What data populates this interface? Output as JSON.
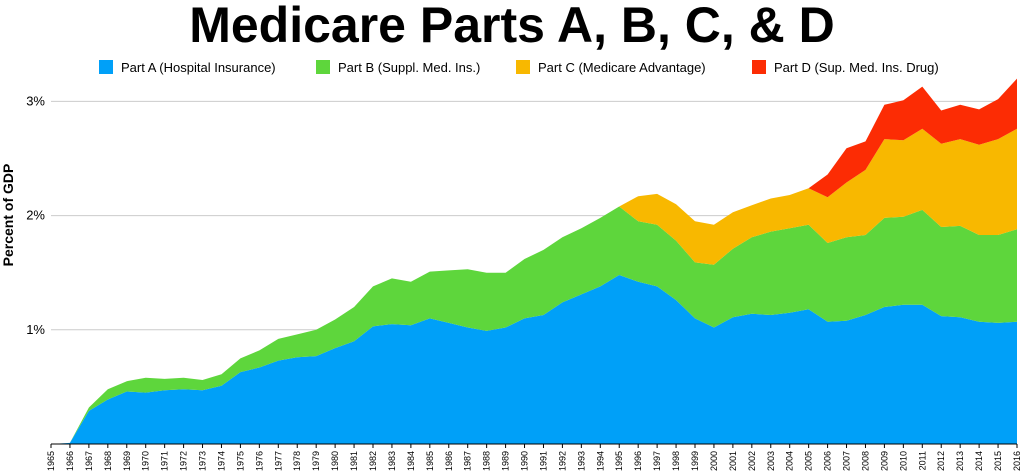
{
  "chart_data": {
    "type": "area",
    "stacked": true,
    "title": "Medicare Parts A, B, C, & D",
    "ylabel": "Percent of GDP",
    "xlabel": "",
    "ylim": [
      0,
      3.2
    ],
    "yticks": [
      1,
      2,
      3
    ],
    "ytick_labels": [
      "1%",
      "2%",
      "3%"
    ],
    "grid": true,
    "legend_position": "top",
    "x": [
      1965,
      1966,
      1967,
      1968,
      1969,
      1970,
      1971,
      1972,
      1973,
      1974,
      1975,
      1976,
      1977,
      1978,
      1979,
      1980,
      1981,
      1982,
      1983,
      1984,
      1985,
      1986,
      1987,
      1988,
      1989,
      1990,
      1991,
      1992,
      1993,
      1994,
      1995,
      1996,
      1997,
      1998,
      1999,
      2000,
      2001,
      2002,
      2003,
      2004,
      2005,
      2006,
      2007,
      2008,
      2009,
      2010,
      2011,
      2012,
      2013,
      2014,
      2015,
      2016
    ],
    "series": [
      {
        "name": "Part A (Hospital Insurance)",
        "color": "#00a0f8",
        "values": [
          0,
          0.01,
          0.29,
          0.39,
          0.46,
          0.45,
          0.47,
          0.48,
          0.47,
          0.51,
          0.63,
          0.67,
          0.73,
          0.76,
          0.77,
          0.84,
          0.9,
          1.03,
          1.05,
          1.04,
          1.1,
          1.06,
          1.02,
          0.99,
          1.02,
          1.1,
          1.13,
          1.24,
          1.31,
          1.38,
          1.48,
          1.42,
          1.38,
          1.26,
          1.1,
          1.02,
          1.11,
          1.14,
          1.13,
          1.15,
          1.18,
          1.07,
          1.08,
          1.13,
          1.2,
          1.22,
          1.22,
          1.12,
          1.11,
          1.07,
          1.06,
          1.07
        ]
      },
      {
        "name": "Part B (Suppl. Med. Ins.)",
        "color": "#5ed63c",
        "values": [
          0,
          0,
          0.03,
          0.09,
          0.09,
          0.13,
          0.1,
          0.1,
          0.09,
          0.1,
          0.12,
          0.15,
          0.19,
          0.2,
          0.23,
          0.25,
          0.3,
          0.35,
          0.4,
          0.38,
          0.41,
          0.46,
          0.51,
          0.51,
          0.48,
          0.52,
          0.57,
          0.57,
          0.58,
          0.6,
          0.6,
          0.53,
          0.54,
          0.52,
          0.49,
          0.55,
          0.6,
          0.67,
          0.73,
          0.74,
          0.74,
          0.69,
          0.73,
          0.7,
          0.78,
          0.77,
          0.83,
          0.78,
          0.8,
          0.76,
          0.77,
          0.81
        ]
      },
      {
        "name": "Part C (Medicare Advantage)",
        "color": "#f8b800",
        "values": [
          0,
          0,
          0,
          0,
          0,
          0,
          0,
          0,
          0,
          0,
          0,
          0,
          0,
          0,
          0,
          0,
          0,
          0,
          0,
          0,
          0,
          0,
          0,
          0,
          0,
          0,
          0,
          0,
          0,
          0,
          0,
          0.22,
          0.27,
          0.32,
          0.36,
          0.35,
          0.32,
          0.28,
          0.29,
          0.29,
          0.32,
          0.4,
          0.48,
          0.57,
          0.69,
          0.67,
          0.71,
          0.73,
          0.76,
          0.79,
          0.84,
          0.88
        ]
      },
      {
        "name": "Part D (Sup. Med. Ins. Drug)",
        "color": "#fc2c04",
        "values": [
          0,
          0,
          0,
          0,
          0,
          0,
          0,
          0,
          0,
          0,
          0,
          0,
          0,
          0,
          0,
          0,
          0,
          0,
          0,
          0,
          0,
          0,
          0,
          0,
          0,
          0,
          0,
          0,
          0,
          0,
          0,
          0,
          0,
          0,
          0,
          0,
          0,
          0,
          0,
          0,
          0,
          0.2,
          0.3,
          0.25,
          0.3,
          0.35,
          0.37,
          0.29,
          0.3,
          0.31,
          0.35,
          0.44
        ]
      }
    ]
  }
}
